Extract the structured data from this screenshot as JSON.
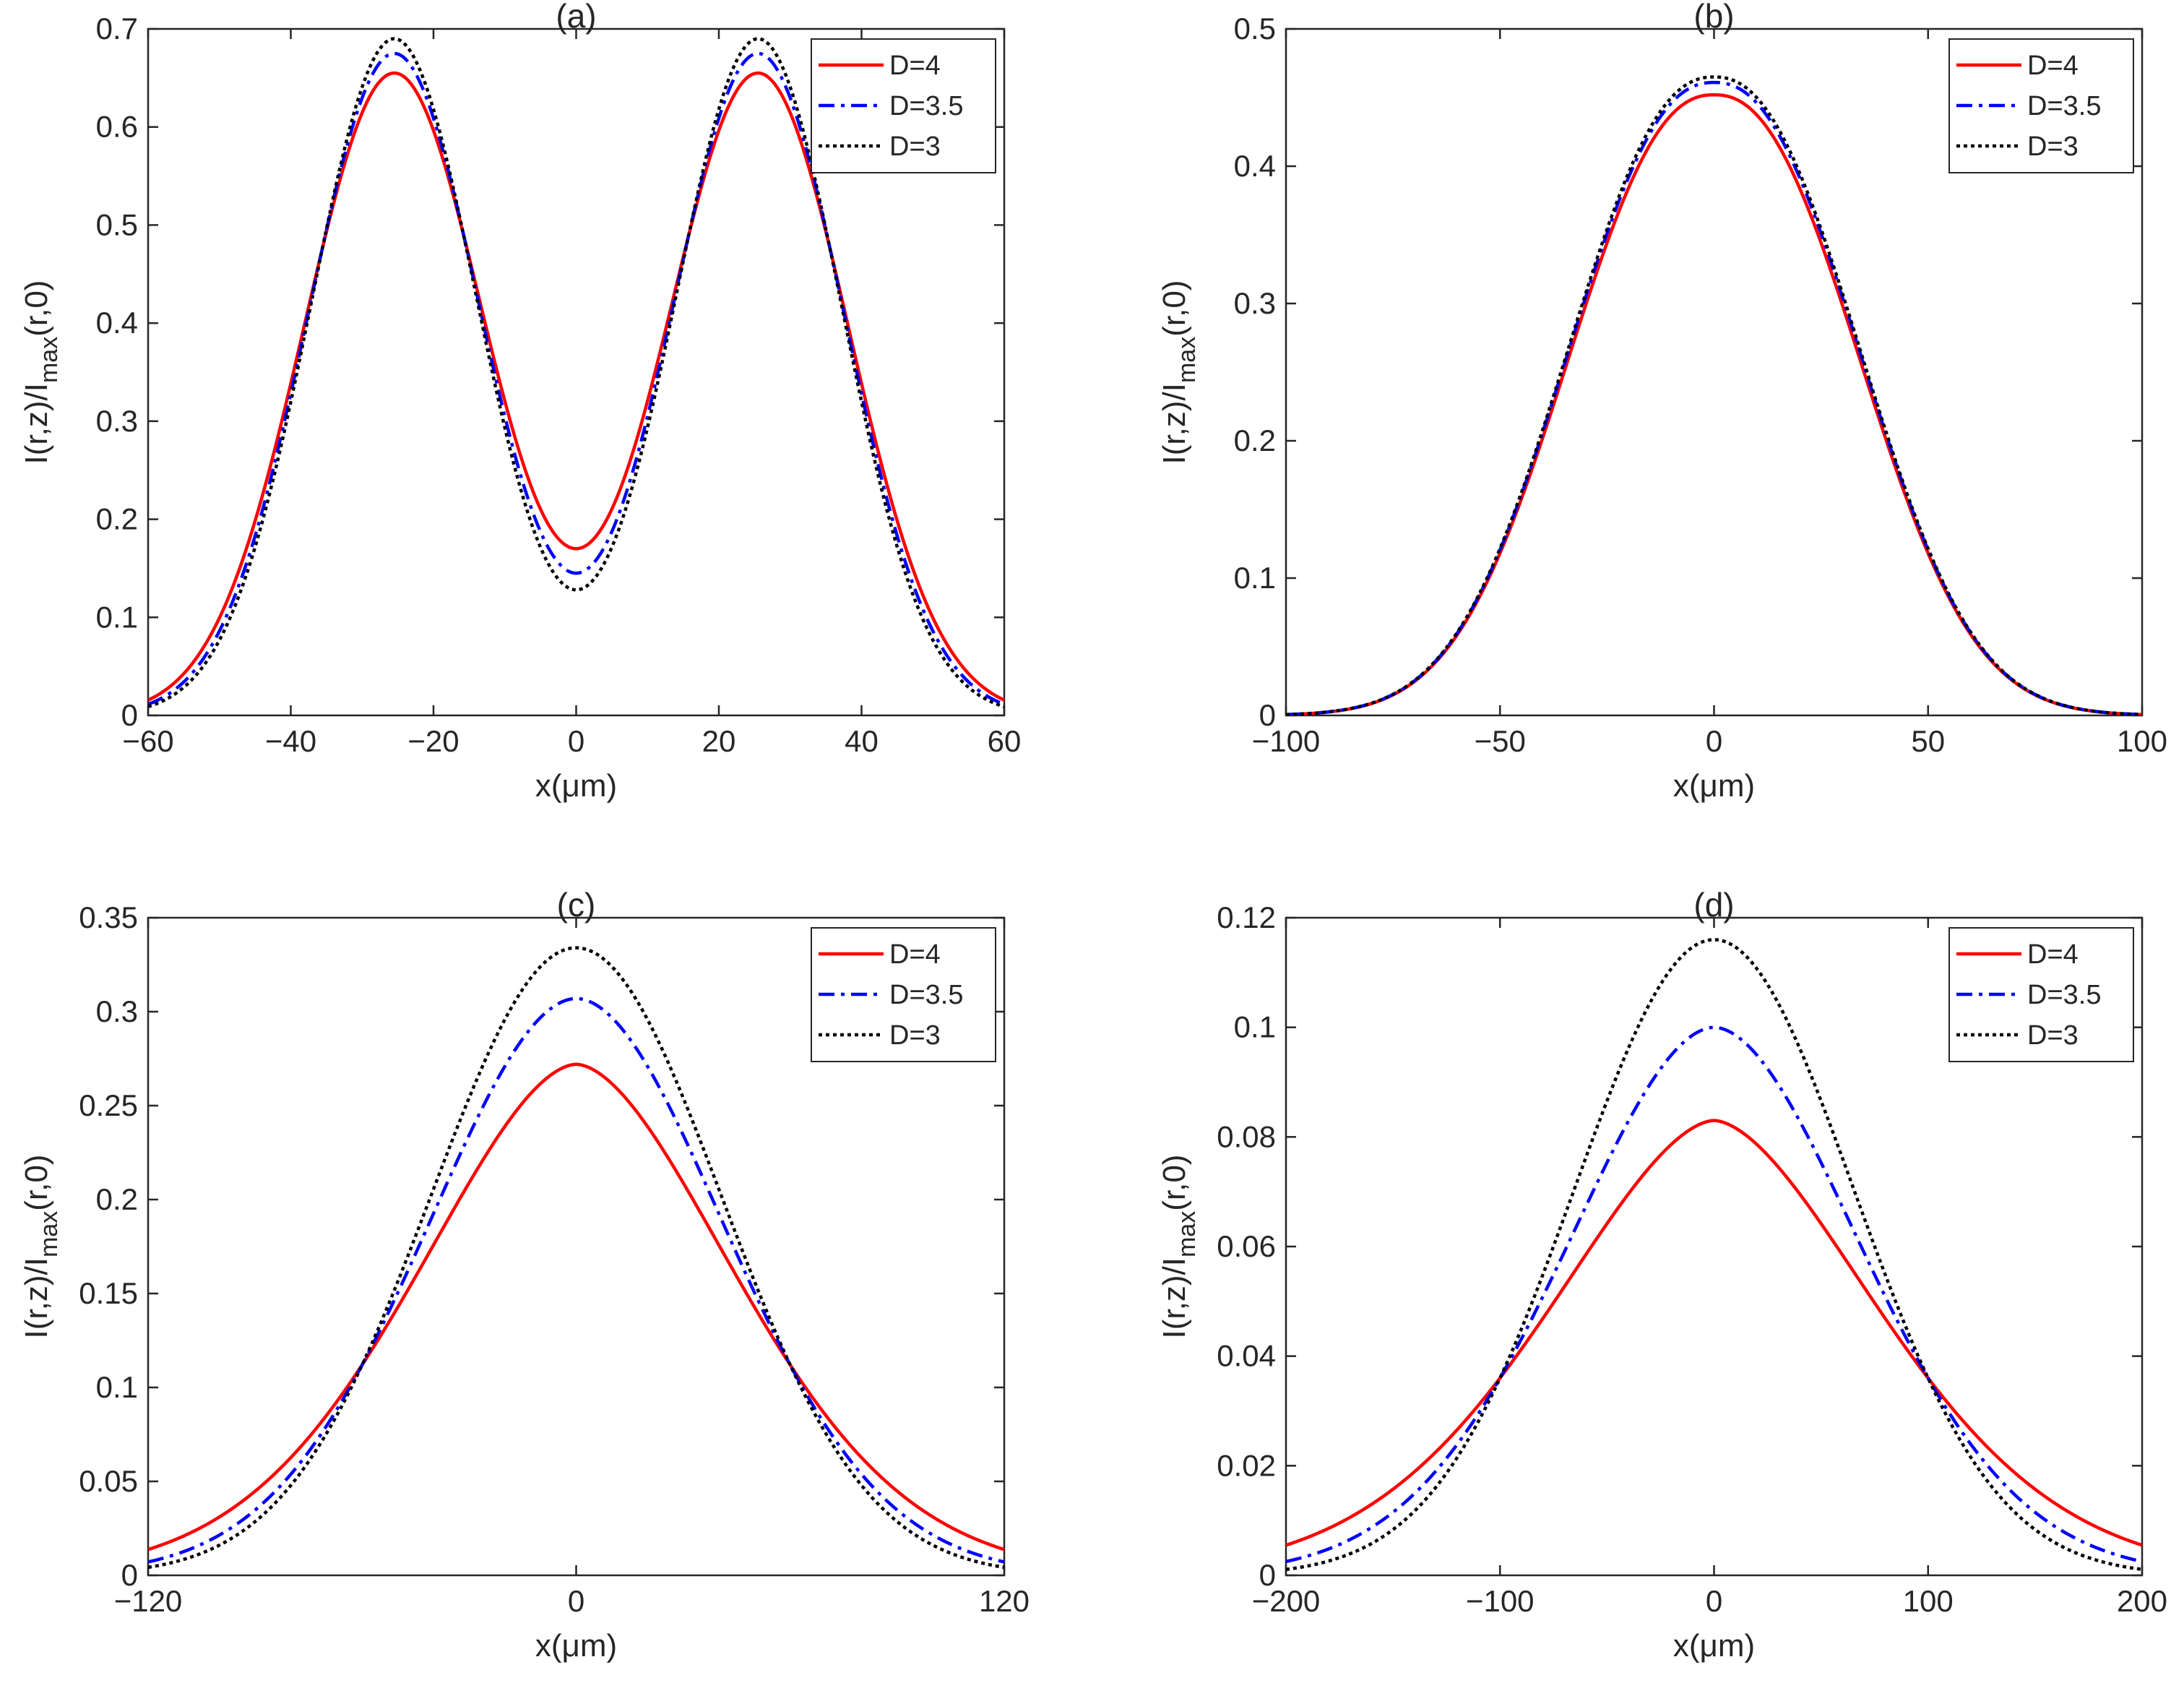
{
  "figure": {
    "type": "line",
    "description_panels": 4
  },
  "colors": {
    "D=4": "#ff0000",
    "D=3.5": "#0000ff",
    "D=3": "#000000",
    "axis": "#262626"
  },
  "chart_data": [
    {
      "type": "line",
      "title": "(a)",
      "xlabel": "x(μm)",
      "ylabel": "I(r,z)/I_max(r,0)",
      "ylabel_parts": {
        "main": "I(r,z)/I",
        "sub": "max",
        "tail": "(r,0)"
      },
      "xlim": [
        -60,
        60
      ],
      "ylim": [
        0,
        0.7
      ],
      "xticks": [
        -60,
        -40,
        -20,
        0,
        20,
        40,
        60
      ],
      "xtick_labels": [
        "−60",
        "−40",
        "−20",
        "0",
        "20",
        "40",
        "60"
      ],
      "yticks": [
        0,
        0.1,
        0.2,
        0.3,
        0.4,
        0.5,
        0.6,
        0.7
      ],
      "ytick_labels": [
        "0",
        "0.1",
        "0.2",
        "0.3",
        "0.4",
        "0.5",
        "0.6",
        "0.7"
      ],
      "legend": "top-right",
      "model": {
        "kind": "double",
        "center": 25.5
      },
      "series": [
        {
          "name": "D=4",
          "color": "#ff0000",
          "style": "solid",
          "peak": 0.655,
          "center_value": 0.17,
          "edge_value": 0.01
        },
        {
          "name": "D=3.5",
          "color": "#0000ff",
          "style": "dashdot",
          "peak": 0.675,
          "center_value": 0.145,
          "edge_value": 0.008
        },
        {
          "name": "D=3",
          "color": "#000000",
          "style": "dotted",
          "peak": 0.69,
          "center_value": 0.128,
          "edge_value": 0.006
        }
      ]
    },
    {
      "type": "line",
      "title": "(b)",
      "xlabel": "x(μm)",
      "ylabel": "I(r,z)/I_max(r,0)",
      "ylabel_parts": {
        "main": "I(r,z)/I",
        "sub": "max",
        "tail": "(r,0)"
      },
      "xlim": [
        -100,
        100
      ],
      "ylim": [
        0,
        0.5
      ],
      "xticks": [
        -100,
        -50,
        0,
        50,
        100
      ],
      "xtick_labels": [
        "−100",
        "−50",
        "0",
        "50",
        "100"
      ],
      "yticks": [
        0,
        0.1,
        0.2,
        0.3,
        0.4,
        0.5
      ],
      "ytick_labels": [
        "0",
        "0.1",
        "0.2",
        "0.3",
        "0.4",
        "0.5"
      ],
      "legend": "top-right",
      "model": {
        "kind": "single"
      },
      "series": [
        {
          "name": "D=4",
          "color": "#ff0000",
          "style": "solid",
          "peak": 0.452,
          "half_width": 44.0,
          "p": 2.3,
          "shape_point": [
            50,
            0.158
          ]
        },
        {
          "name": "D=3.5",
          "color": "#0000ff",
          "style": "dashdot",
          "peak": 0.461,
          "half_width": 44.0,
          "p": 2.3,
          "shape_point": [
            50,
            0.158
          ]
        },
        {
          "name": "D=3",
          "color": "#000000",
          "style": "dotted",
          "peak": 0.465,
          "half_width": 44.0,
          "p": 2.3,
          "shape_point": [
            50,
            0.158
          ]
        }
      ]
    },
    {
      "type": "line",
      "title": "(c)",
      "xlabel": "x(μm)",
      "ylabel": "I(r,z)/I_max(r,0)",
      "ylabel_parts": {
        "main": "I(r,z)/I",
        "sub": "max",
        "tail": "(r,0)"
      },
      "xlim": [
        -120,
        120
      ],
      "ylim": [
        0,
        0.35
      ],
      "xticks": [
        -120,
        0,
        120
      ],
      "xtick_labels": [
        "−120",
        "0",
        "120"
      ],
      "yticks": [
        0,
        0.05,
        0.1,
        0.15,
        0.2,
        0.25,
        0.3,
        0.35
      ],
      "ytick_labels": [
        "0",
        "0.05",
        "0.1",
        "0.15",
        "0.2",
        "0.25",
        "0.3",
        "0.35"
      ],
      "legend": "top-right",
      "model": {
        "kind": "single"
      },
      "series": [
        {
          "name": "D=4",
          "color": "#ff0000",
          "style": "solid",
          "peak": 0.272,
          "p": 1.75,
          "shape_point": [
            60,
            0.112
          ],
          "edge_value": 0.005
        },
        {
          "name": "D=3.5",
          "color": "#0000ff",
          "style": "dashdot",
          "peak": 0.307,
          "p": 1.9,
          "shape_point": [
            60,
            0.112
          ],
          "edge_value": 0.004
        },
        {
          "name": "D=3",
          "color": "#000000",
          "style": "dotted",
          "peak": 0.334,
          "p": 2.0,
          "shape_point": [
            60,
            0.112
          ],
          "edge_value": 0.002
        }
      ]
    },
    {
      "type": "line",
      "title": "(d)",
      "xlabel": "x(μm)",
      "ylabel": "I(r,z)/I_max(r,0)",
      "ylabel_parts": {
        "main": "I(r,z)/I",
        "sub": "max",
        "tail": "(r,0)"
      },
      "xlim": [
        -200,
        200
      ],
      "ylim": [
        0,
        0.12
      ],
      "xticks": [
        -200,
        -100,
        0,
        100,
        200
      ],
      "xtick_labels": [
        "−200",
        "−100",
        "0",
        "100",
        "200"
      ],
      "yticks": [
        0,
        0.02,
        0.04,
        0.06,
        0.08,
        0.1,
        0.12
      ],
      "ytick_labels": [
        "0",
        "0.02",
        "0.04",
        "0.06",
        "0.08",
        "0.1",
        "0.12"
      ],
      "legend": "top-right",
      "model": {
        "kind": "single"
      },
      "series": [
        {
          "name": "D=4",
          "color": "#ff0000",
          "style": "solid",
          "peak": 0.083,
          "p": 1.7,
          "shape_point": [
            100,
            0.036
          ],
          "edge_value": 0.003
        },
        {
          "name": "D=3.5",
          "color": "#0000ff",
          "style": "dashdot",
          "peak": 0.1,
          "p": 1.85,
          "shape_point": [
            100,
            0.036
          ],
          "edge_value": 0.002
        },
        {
          "name": "D=3",
          "color": "#000000",
          "style": "dotted",
          "peak": 0.116,
          "p": 2.0,
          "shape_point": [
            100,
            0.036
          ],
          "edge_value": 0.001
        }
      ]
    }
  ]
}
